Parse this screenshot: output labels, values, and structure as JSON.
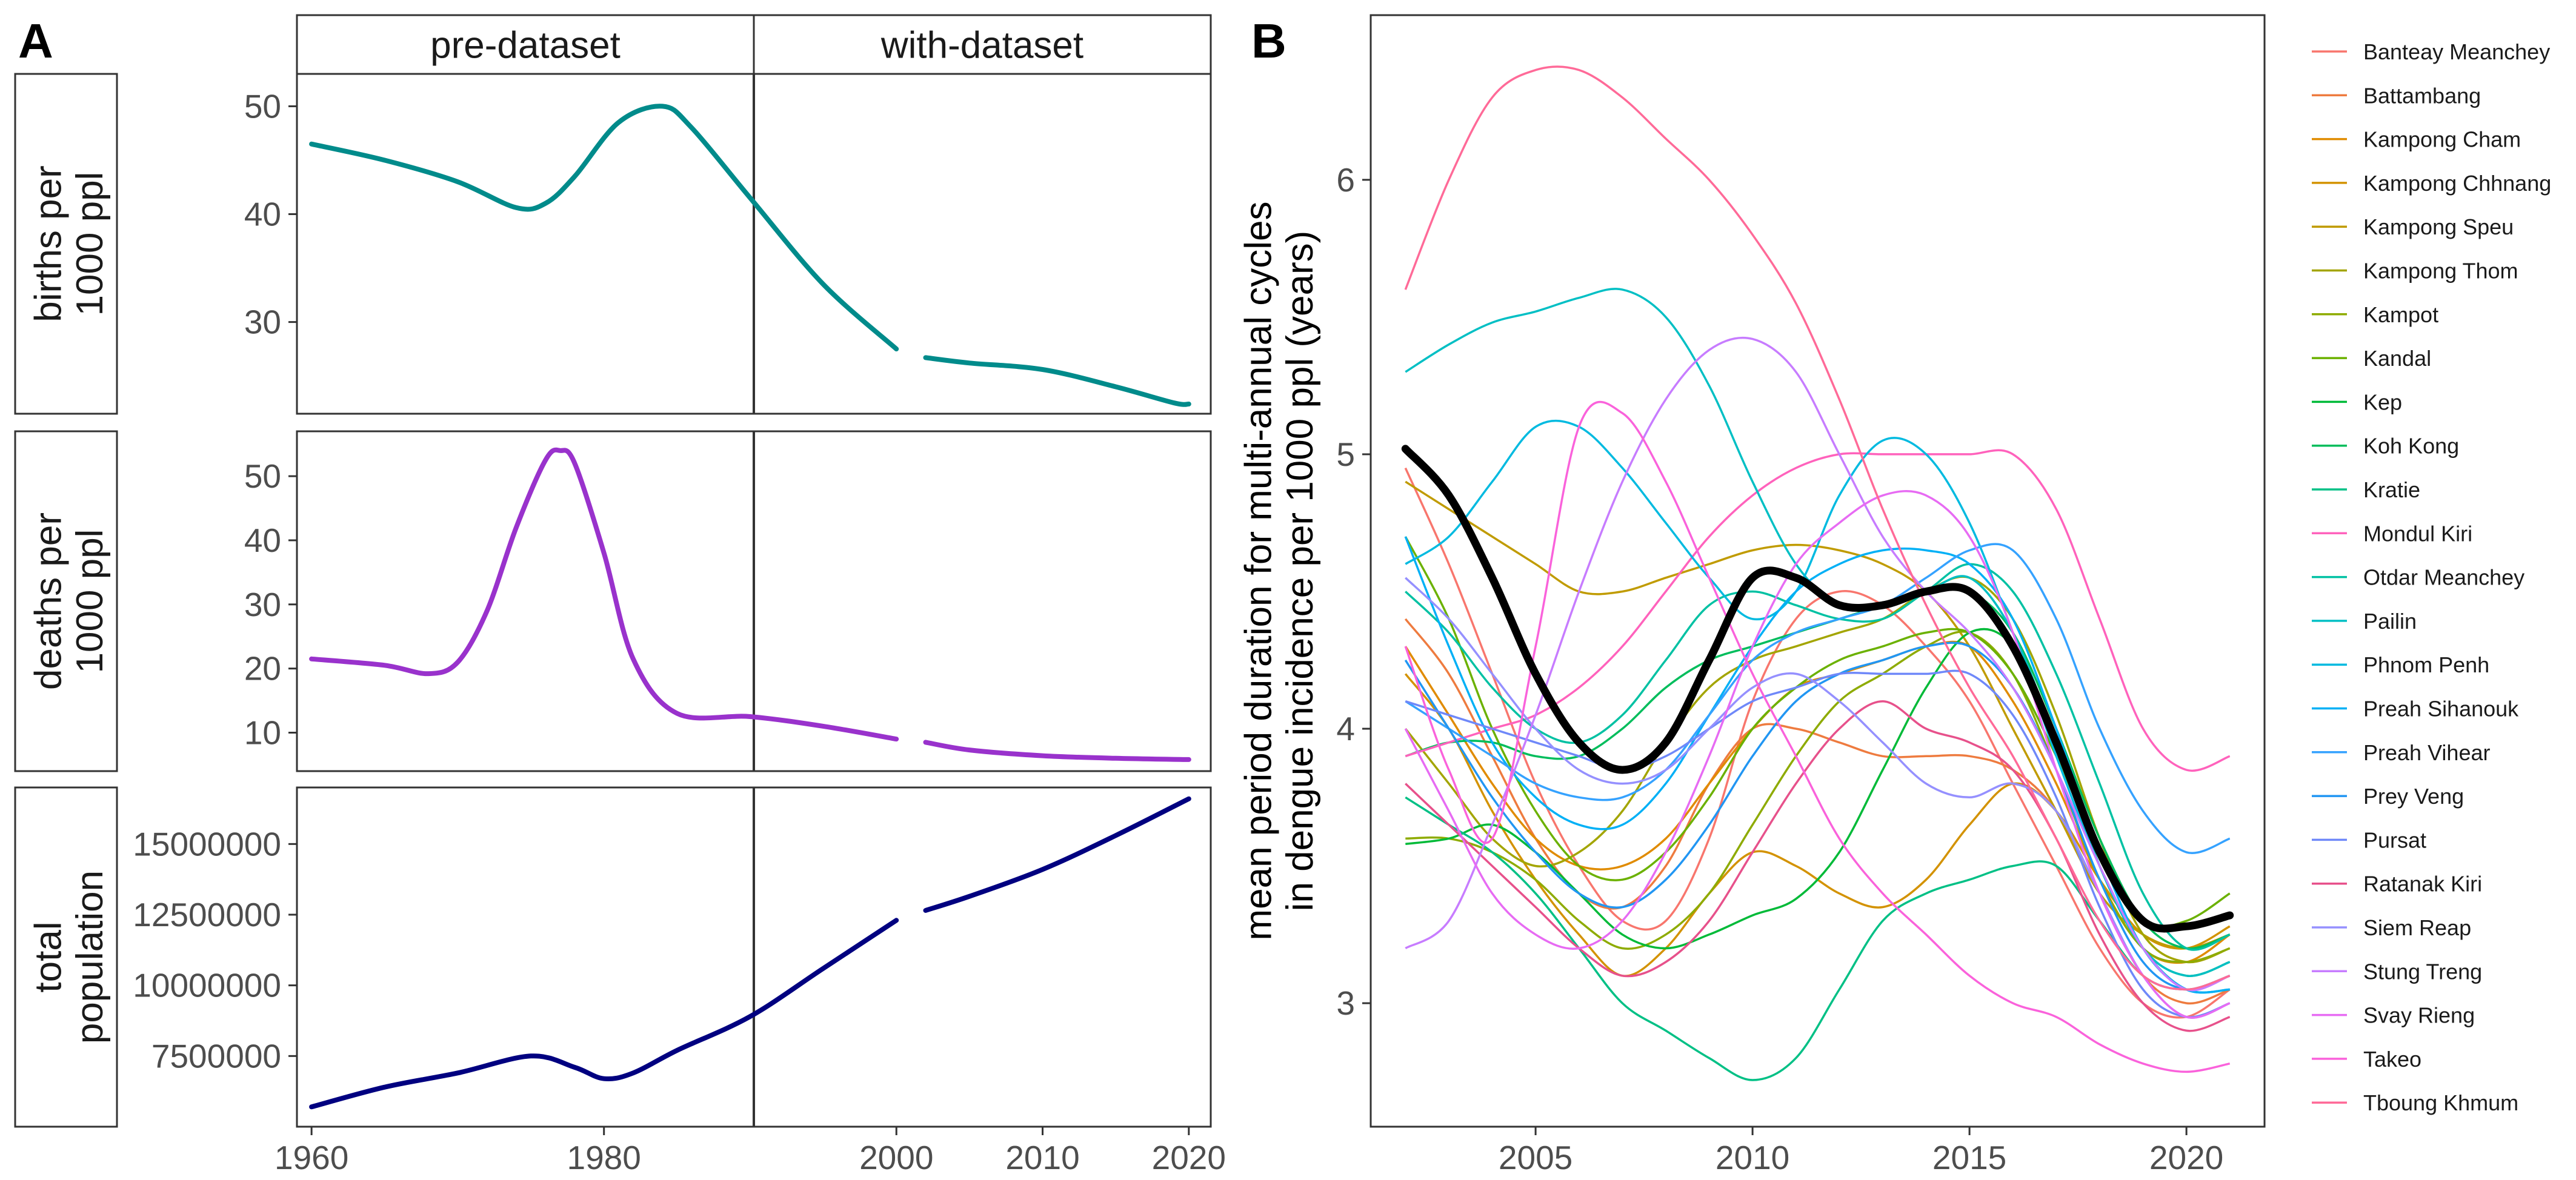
{
  "panel_labels": {
    "a": "A",
    "b": "B"
  },
  "chart_data": [
    {
      "type": "line",
      "panel": "A",
      "facet_columns": [
        "pre-dataset",
        "with-dataset"
      ],
      "x_ticks": [
        "1960",
        "1980",
        "2000",
        "2010",
        "2020"
      ],
      "xlim": [
        1959,
        2021.5
      ],
      "rows": [
        {
          "strip": "births per\n1000 ppl",
          "color": "#008B8B",
          "ylim": [
            21.5,
            53
          ],
          "y_ticks": [
            30,
            40,
            50
          ],
          "y_tick_labels": [
            "30",
            "40",
            "50"
          ],
          "segments": [
            {
              "x": [
                1960,
                1965,
                1970,
                1974,
                1976,
                1978,
                1981,
                1984,
                1986,
                1990,
                1995,
                2000
              ],
              "y": [
                46.5,
                45,
                43,
                40.6,
                41,
                43.5,
                48.5,
                50,
                48,
                41.5,
                33.5,
                27.5
              ]
            },
            {
              "x": [
                2002,
                2005,
                2010,
                2015,
                2019,
                2020
              ],
              "y": [
                26.7,
                26.2,
                25.6,
                24,
                22.5,
                22.4
              ]
            }
          ]
        },
        {
          "strip": "deaths per\n1000 ppl",
          "color": "#9932CC",
          "ylim": [
            4,
            57
          ],
          "y_ticks": [
            10,
            20,
            30,
            40,
            50
          ],
          "y_tick_labels": [
            "10",
            "20",
            "30",
            "40",
            "50"
          ],
          "segments": [
            {
              "x": [
                1960,
                1965,
                1968,
                1970,
                1972,
                1974,
                1976,
                1977,
                1978,
                1980,
                1982,
                1985,
                1990,
                1995,
                2000
              ],
              "y": [
                21.5,
                20.5,
                19.2,
                21,
                29,
                42,
                52.5,
                54,
                52,
                38,
                21.5,
                13,
                12.5,
                11,
                9
              ]
            },
            {
              "x": [
                2002,
                2005,
                2010,
                2015,
                2020
              ],
              "y": [
                8.5,
                7.3,
                6.4,
                6,
                5.8
              ]
            }
          ]
        },
        {
          "strip": "total\npopulation",
          "color": "#000080",
          "ylim": [
            5000000,
            17000000
          ],
          "y_ticks": [
            7500000,
            10000000,
            12500000,
            15000000
          ],
          "y_tick_labels": [
            "7500000",
            "10000000",
            "12500000",
            "15000000"
          ],
          "segments": [
            {
              "x": [
                1960,
                1965,
                1970,
                1975,
                1978,
                1980,
                1982,
                1985,
                1990,
                1995,
                2000
              ],
              "y": [
                5700000,
                6400000,
                6900000,
                7500000,
                7100000,
                6700000,
                6900000,
                7700000,
                8900000,
                10600000,
                12300000
              ]
            },
            {
              "x": [
                2002,
                2005,
                2010,
                2015,
                2020
              ],
              "y": [
                12650000,
                13150000,
                14100000,
                15300000,
                16600000
              ]
            }
          ]
        }
      ]
    },
    {
      "type": "line",
      "panel": "B",
      "ylabel": "mean period duration for multi-annual cycles\nin dengue incidence per 1000 ppl (years)",
      "xlim": [
        2001.2,
        2021.8
      ],
      "ylim": [
        2.55,
        6.6
      ],
      "x_ticks": [
        2005,
        2010,
        2015,
        2020
      ],
      "x_tick_labels": [
        "2005",
        "2010",
        "2015",
        "2020"
      ],
      "y_ticks": [
        3,
        4,
        5,
        6
      ],
      "y_tick_labels": [
        "3",
        "4",
        "5",
        "6"
      ],
      "x": [
        2002,
        2003,
        2004,
        2005,
        2006,
        2007,
        2008,
        2009,
        2010,
        2011,
        2012,
        2013,
        2014,
        2015,
        2016,
        2017,
        2018,
        2019,
        2020,
        2021
      ],
      "mean_series": {
        "color": "#000000",
        "values": [
          5.02,
          4.85,
          4.55,
          4.2,
          3.95,
          3.85,
          3.95,
          4.25,
          4.55,
          4.55,
          4.45,
          4.45,
          4.5,
          4.5,
          4.3,
          3.95,
          3.55,
          3.3,
          3.28,
          3.32
        ]
      },
      "series": [
        {
          "name": "Banteay Meanchey",
          "color": "#F8766D",
          "values": [
            4.95,
            4.6,
            4.2,
            3.8,
            3.5,
            3.3,
            3.3,
            3.6,
            4.1,
            4.4,
            4.5,
            4.45,
            4.3,
            4.1,
            3.8,
            3.5,
            3.2,
            3.0,
            2.95,
            3.05
          ]
        },
        {
          "name": "Battambang",
          "color": "#EE7B3F",
          "values": [
            4.4,
            4.2,
            3.9,
            3.6,
            3.4,
            3.35,
            3.5,
            3.8,
            4.0,
            4.0,
            3.95,
            3.9,
            3.9,
            3.9,
            3.85,
            3.7,
            3.4,
            3.1,
            3.0,
            3.05
          ]
        },
        {
          "name": "Kampong Cham",
          "color": "#E08B00",
          "values": [
            4.3,
            4.05,
            3.8,
            3.6,
            3.5,
            3.5,
            3.6,
            3.8,
            4.0,
            4.15,
            4.2,
            4.25,
            4.3,
            4.3,
            4.1,
            3.8,
            3.45,
            3.2,
            3.15,
            3.25
          ]
        },
        {
          "name": "Kampong Chhnang",
          "color": "#D39200",
          "values": [
            4.2,
            4.0,
            3.7,
            3.45,
            3.25,
            3.1,
            3.2,
            3.4,
            3.55,
            3.5,
            3.4,
            3.35,
            3.45,
            3.65,
            3.8,
            3.7,
            3.45,
            3.25,
            3.2,
            3.28
          ]
        },
        {
          "name": "Kampong Speu",
          "color": "#C09B00",
          "values": [
            4.9,
            4.8,
            4.7,
            4.6,
            4.5,
            4.5,
            4.55,
            4.6,
            4.65,
            4.67,
            4.65,
            4.6,
            4.5,
            4.3,
            4.0,
            3.7,
            3.4,
            3.25,
            3.2,
            3.25
          ]
        },
        {
          "name": "Kampong Thom",
          "color": "#A3A500",
          "values": [
            4.0,
            3.8,
            3.6,
            3.5,
            3.55,
            3.7,
            3.95,
            4.15,
            4.25,
            4.3,
            4.35,
            4.4,
            4.5,
            4.55,
            4.4,
            4.05,
            3.6,
            3.25,
            3.15,
            3.2
          ]
        },
        {
          "name": "Kampot",
          "color": "#8EAB00",
          "values": [
            3.6,
            3.6,
            3.55,
            3.45,
            3.3,
            3.2,
            3.25,
            3.4,
            3.65,
            3.9,
            4.1,
            4.2,
            4.3,
            4.35,
            4.2,
            3.85,
            3.45,
            3.2,
            3.15,
            3.2
          ]
        },
        {
          "name": "Kandal",
          "color": "#6BB100",
          "values": [
            4.7,
            4.4,
            4.0,
            3.7,
            3.5,
            3.45,
            3.55,
            3.75,
            4.0,
            4.15,
            4.25,
            4.3,
            4.35,
            4.35,
            4.2,
            3.9,
            3.55,
            3.3,
            3.3,
            3.4
          ]
        },
        {
          "name": "Kep",
          "color": "#00BA38",
          "values": [
            3.58,
            3.6,
            3.65,
            3.55,
            3.4,
            3.25,
            3.2,
            3.25,
            3.32,
            3.38,
            3.55,
            3.85,
            4.15,
            4.35,
            4.3,
            3.95,
            3.5,
            3.2,
            3.1,
            3.15
          ]
        },
        {
          "name": "Koh Kong",
          "color": "#00BD5C",
          "values": [
            3.9,
            3.95,
            3.95,
            3.9,
            3.9,
            4.0,
            4.15,
            4.25,
            4.3,
            4.35,
            4.4,
            4.45,
            4.5,
            4.5,
            4.35,
            4.0,
            3.6,
            3.3,
            3.2,
            3.25
          ]
        },
        {
          "name": "Kratie",
          "color": "#00C085",
          "values": [
            3.75,
            3.65,
            3.55,
            3.4,
            3.2,
            3.0,
            2.9,
            2.8,
            2.72,
            2.8,
            3.05,
            3.3,
            3.4,
            3.45,
            3.5,
            3.5,
            3.3,
            3.1,
            3.05,
            3.1
          ]
        },
        {
          "name": "Mondul Kiri",
          "color": "#FF62BC",
          "values": [
            3.9,
            3.95,
            4.0,
            4.05,
            4.15,
            4.3,
            4.5,
            4.7,
            4.85,
            4.95,
            5.0,
            5.0,
            5.0,
            5.0,
            5.0,
            4.8,
            4.4,
            4.0,
            3.85,
            3.9
          ]
        },
        {
          "name": "Otdar Meanchey",
          "color": "#00C1A3",
          "values": [
            4.5,
            4.35,
            4.15,
            4.0,
            3.95,
            4.05,
            4.25,
            4.45,
            4.5,
            4.45,
            4.4,
            4.4,
            4.5,
            4.6,
            4.5,
            4.2,
            3.8,
            3.4,
            3.2,
            3.25
          ]
        },
        {
          "name": "Pailin",
          "color": "#00BFC4",
          "values": [
            5.3,
            5.4,
            5.48,
            5.52,
            5.57,
            5.6,
            5.5,
            5.25,
            4.9,
            4.6,
            4.45,
            4.45,
            4.5,
            4.55,
            4.35,
            3.95,
            3.5,
            3.2,
            3.1,
            3.15
          ]
        },
        {
          "name": "Phnom Penh",
          "color": "#00BAE0",
          "values": [
            4.6,
            4.7,
            4.9,
            5.1,
            5.1,
            4.95,
            4.75,
            4.55,
            4.4,
            4.5,
            4.85,
            5.05,
            5.0,
            4.75,
            4.35,
            3.9,
            3.5,
            3.2,
            3.05,
            3.05
          ]
        },
        {
          "name": "Preah Sihanouk",
          "color": "#00B0F6",
          "values": [
            4.7,
            4.3,
            3.95,
            3.75,
            3.65,
            3.65,
            3.8,
            4.05,
            4.3,
            4.5,
            4.6,
            4.65,
            4.65,
            4.6,
            4.4,
            4.0,
            3.55,
            3.2,
            3.05,
            3.05
          ]
        },
        {
          "name": "Preah Vihear",
          "color": "#35A2FF",
          "values": [
            4.1,
            4.0,
            3.9,
            3.8,
            3.75,
            3.75,
            3.85,
            4.05,
            4.25,
            4.35,
            4.4,
            4.45,
            4.55,
            4.65,
            4.65,
            4.4,
            4.0,
            3.7,
            3.55,
            3.6
          ]
        },
        {
          "name": "Prey Veng",
          "color": "#2196F3",
          "values": [
            4.25,
            4.0,
            3.75,
            3.55,
            3.4,
            3.35,
            3.45,
            3.65,
            3.9,
            4.1,
            4.2,
            4.25,
            4.3,
            4.3,
            4.15,
            3.85,
            3.45,
            3.15,
            3.05,
            3.1
          ]
        },
        {
          "name": "Pursat",
          "color": "#6F88F9",
          "values": [
            4.1,
            4.05,
            4.0,
            3.95,
            3.9,
            3.85,
            3.9,
            4.0,
            4.1,
            4.15,
            4.2,
            4.2,
            4.2,
            4.2,
            4.05,
            3.75,
            3.35,
            3.05,
            2.95,
            3.0
          ]
        },
        {
          "name": "Ratanak Kiri",
          "color": "#E7518B",
          "values": [
            3.8,
            3.65,
            3.5,
            3.35,
            3.2,
            3.1,
            3.15,
            3.3,
            3.55,
            3.8,
            4.0,
            4.1,
            4.0,
            3.95,
            3.85,
            3.6,
            3.25,
            3.0,
            2.9,
            2.95
          ]
        },
        {
          "name": "Siem Reap",
          "color": "#9590FF",
          "values": [
            4.55,
            4.4,
            4.2,
            4.0,
            3.85,
            3.8,
            3.85,
            4.0,
            4.15,
            4.2,
            4.1,
            3.95,
            3.8,
            3.75,
            3.8,
            3.7,
            3.4,
            3.1,
            2.95,
            3.0
          ]
        },
        {
          "name": "Stung Treng",
          "color": "#C77CFF",
          "values": [
            3.2,
            3.3,
            3.65,
            4.05,
            4.5,
            4.9,
            5.2,
            5.38,
            5.42,
            5.3,
            5.0,
            4.7,
            4.5,
            4.35,
            4.15,
            3.85,
            3.5,
            3.2,
            3.05,
            3.1
          ]
        },
        {
          "name": "Svay Rieng",
          "color": "#E76BF3",
          "values": [
            4.0,
            3.7,
            3.4,
            3.25,
            3.2,
            3.3,
            3.55,
            3.9,
            4.3,
            4.6,
            4.75,
            4.85,
            4.85,
            4.7,
            4.35,
            3.85,
            3.4,
            3.1,
            2.95,
            3.0
          ]
        },
        {
          "name": "Takeo",
          "color": "#FA62DB",
          "values": [
            4.3,
            3.85,
            3.6,
            4.3,
            5.1,
            5.15,
            4.9,
            4.55,
            4.2,
            3.9,
            3.6,
            3.4,
            3.25,
            3.1,
            3.0,
            2.95,
            2.85,
            2.78,
            2.75,
            2.78
          ]
        },
        {
          "name": "Tboung Khmum",
          "color": "#FF6A98",
          "values": [
            5.6,
            6.0,
            6.3,
            6.4,
            6.4,
            6.3,
            6.15,
            6.0,
            5.8,
            5.55,
            5.2,
            4.8,
            4.45,
            4.15,
            3.9,
            3.6,
            3.3,
            3.1,
            3.05,
            3.1
          ]
        }
      ]
    }
  ]
}
